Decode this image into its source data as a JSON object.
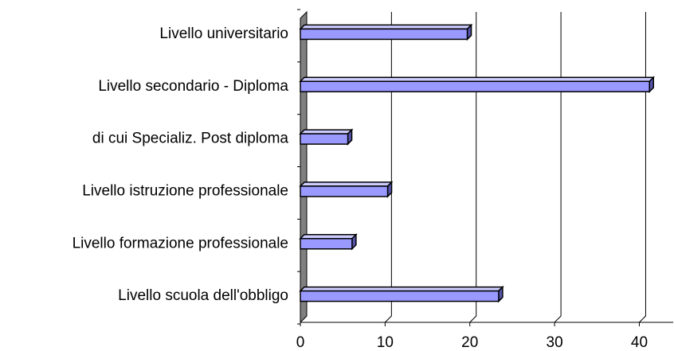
{
  "chart_data": {
    "type": "bar3d_horizontal",
    "categories": [
      "Livello universitario",
      "Livello secondario - Diploma",
      "di cui Specializ. Post diploma",
      "Livello istruzione professionale",
      "Livello formazione professionale",
      "Livello scuola dell'obbligo"
    ],
    "values": [
      19.7,
      41.2,
      5.6,
      10.3,
      6.1,
      23.4
    ],
    "color": "#9999ff",
    "xlim": [
      0,
      44
    ],
    "xticks": [
      0,
      10,
      20,
      30,
      40
    ],
    "grid": true
  }
}
